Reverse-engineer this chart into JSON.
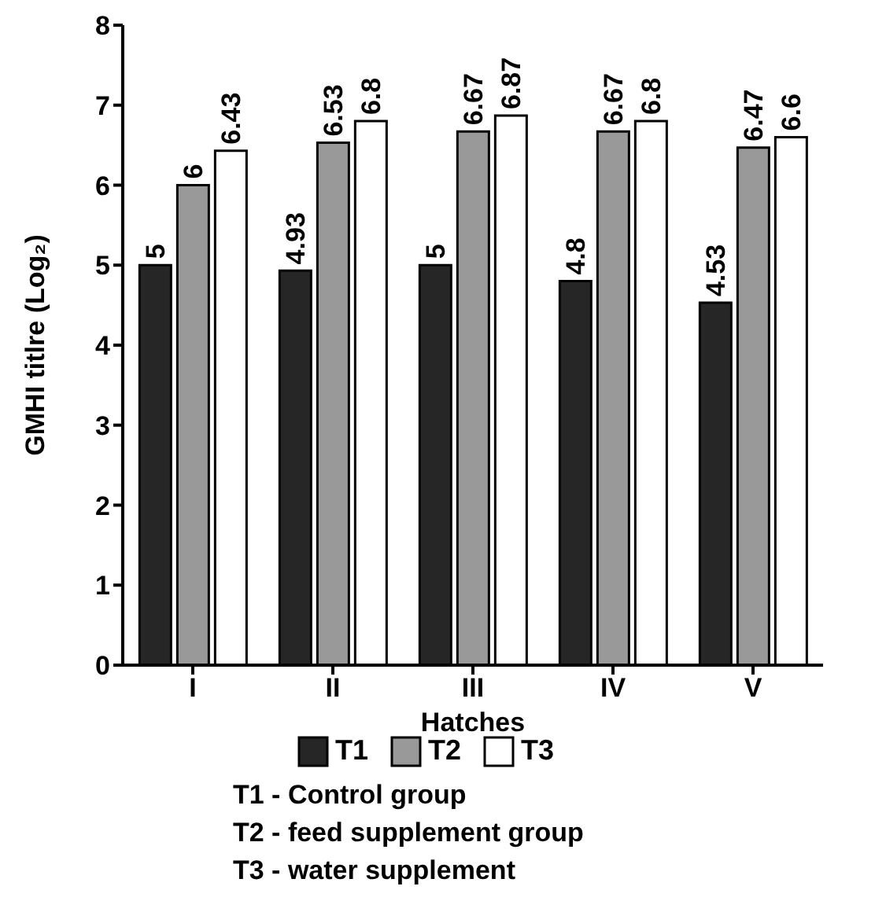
{
  "chart_data": {
    "type": "bar",
    "xlabel": "Hatches",
    "ylabel": "GMHI titlre (Log₂)",
    "categories": [
      "I",
      "II",
      "III",
      "IV",
      "V"
    ],
    "series": [
      {
        "name": "T1",
        "color": "#262626",
        "values": [
          5,
          4.93,
          5,
          4.8,
          4.53
        ]
      },
      {
        "name": "T2",
        "color": "#999999",
        "values": [
          6,
          6.53,
          6.67,
          6.67,
          6.47
        ]
      },
      {
        "name": "T3",
        "color": "#ffffff",
        "values": [
          6.43,
          6.8,
          6.87,
          6.8,
          6.6
        ]
      }
    ],
    "ylim": [
      0,
      8
    ],
    "yticks": [
      0,
      1,
      2,
      3,
      4,
      5,
      6,
      7,
      8
    ],
    "data_labels": true,
    "legend": "bottom",
    "annotations": [
      "T1 - Control group",
      "T2 - feed supplement group",
      "T3 - water supplement"
    ]
  }
}
